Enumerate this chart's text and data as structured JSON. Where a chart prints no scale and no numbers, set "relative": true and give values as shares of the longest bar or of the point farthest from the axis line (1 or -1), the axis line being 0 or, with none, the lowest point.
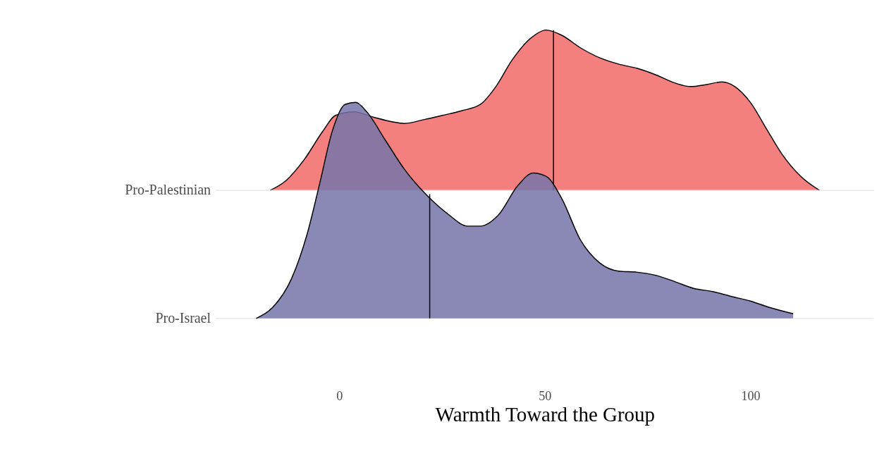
{
  "chart_data": {
    "type": "area",
    "relative": true,
    "xlabel": "Warmth Toward the Group",
    "xlim": [
      -30,
      130
    ],
    "xticks": [
      0,
      50,
      100
    ],
    "ref_lines": [
      {
        "axis": "y",
        "value": 0.444,
        "label": "Pro-Palestinian",
        "color": "#e5e5e5"
      },
      {
        "axis": "y",
        "value": 0,
        "label": "Pro-Israel",
        "color": "#e5e5e5"
      }
    ],
    "series": [
      {
        "color": "#f47f7f",
        "x": [
          -16.8,
          -13.1,
          -8.6,
          -4.0,
          -0.9,
          3.7,
          8.3,
          12.8,
          15.9,
          20.5,
          25.1,
          29.7,
          34.3,
          38.1,
          41.9,
          46.5,
          50.3,
          54.1,
          58.7,
          63.3,
          67.9,
          72.5,
          77.1,
          81.7,
          85.5,
          89.3,
          93.1,
          96.2,
          100,
          103.8,
          107.6,
          112.2,
          116.8
        ],
        "values": [
          0.444,
          0.476,
          0.549,
          0.649,
          0.704,
          0.716,
          0.698,
          0.682,
          0.676,
          0.689,
          0.704,
          0.72,
          0.742,
          0.804,
          0.893,
          0.971,
          1,
          0.982,
          0.938,
          0.904,
          0.882,
          0.867,
          0.844,
          0.816,
          0.804,
          0.811,
          0.82,
          0.804,
          0.749,
          0.66,
          0.571,
          0.493,
          0.444
        ]
      },
      {
        "type": "line",
        "color": "#000000",
        "x": [
          52.1,
          52.1
        ],
        "values": [
          0.444,
          1
        ]
      },
      {
        "color": "#7574a8",
        "x": [
          -20.2,
          -16.2,
          -11.6,
          -7.8,
          -4.7,
          -1.7,
          1.4,
          4.0,
          6.7,
          11.3,
          15.9,
          21.3,
          26.6,
          31.2,
          34.3,
          38.8,
          43.4,
          47.2,
          50.3,
          54.1,
          58.7,
          63.3,
          67.9,
          72.5,
          77.1,
          81.7,
          86.2,
          90.8,
          95.4,
          100,
          104.6,
          110.4
        ],
        "values": [
          0,
          0.038,
          0.138,
          0.293,
          0.471,
          0.649,
          0.742,
          0.749,
          0.716,
          0.616,
          0.516,
          0.427,
          0.36,
          0.32,
          0.32,
          0.36,
          0.46,
          0.504,
          0.493,
          0.416,
          0.271,
          0.193,
          0.164,
          0.16,
          0.149,
          0.127,
          0.104,
          0.093,
          0.076,
          0.06,
          0.038,
          0.016
        ]
      },
      {
        "type": "line",
        "color": "#000000",
        "x": [
          22.0,
          22.0
        ],
        "values": [
          0,
          0.431
        ]
      }
    ]
  }
}
